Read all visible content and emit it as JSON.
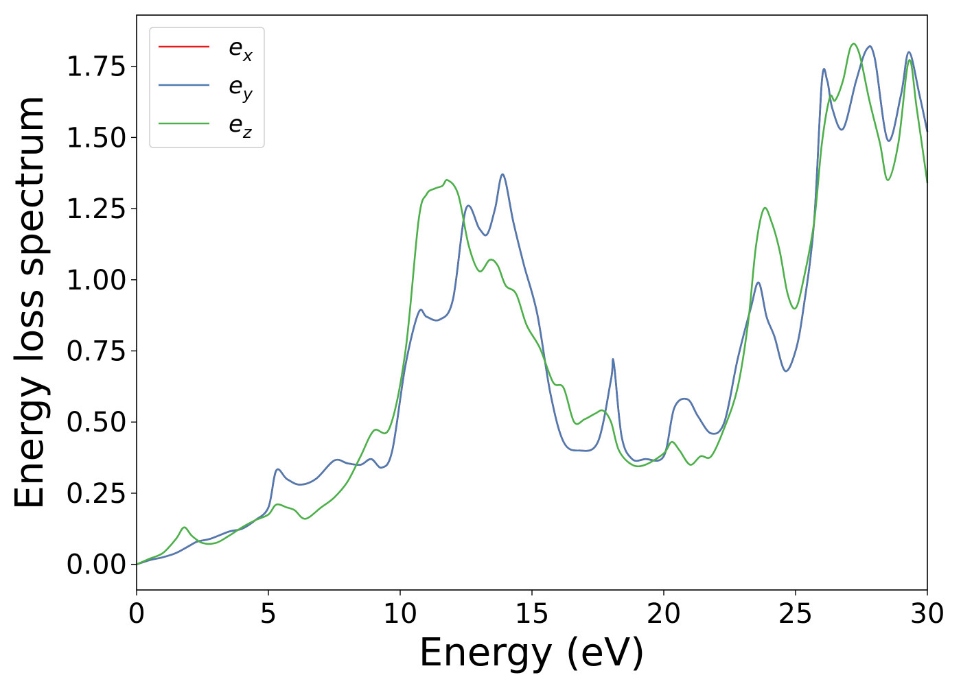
{
  "chart_data": {
    "type": "line",
    "title": "",
    "xlabel": "Energy (eV)",
    "ylabel": "Energy loss spectrum",
    "xlim": [
      0,
      30
    ],
    "ylim": [
      -0.09,
      1.93
    ],
    "xticks": [
      0,
      5,
      10,
      15,
      20,
      25,
      30
    ],
    "xtick_labels": [
      "0",
      "5",
      "10",
      "15",
      "20",
      "25",
      "30"
    ],
    "yticks": [
      0,
      0.25,
      0.5,
      0.75,
      1.0,
      1.25,
      1.5,
      1.75
    ],
    "ytick_labels": [
      "0.00",
      "0.25",
      "0.50",
      "0.75",
      "1.00",
      "1.25",
      "1.50",
      "1.75"
    ],
    "grid": false,
    "legend_position": "top-left",
    "series": [
      {
        "name": "e",
        "subscript": "x",
        "color": "#e41a1c",
        "x": [
          0,
          0.5,
          1,
          1.5,
          2,
          2.3,
          2.8,
          3.5,
          4,
          4.5,
          5,
          5.3,
          5.7,
          6.2,
          6.8,
          7.5,
          8,
          8.5,
          8.9,
          9.3,
          9.7,
          10.2,
          10.7,
          11,
          11.5,
          12,
          12.5,
          13,
          13.3,
          13.6,
          13.9,
          14.3,
          14.7,
          15.2,
          15.7,
          16.2,
          16.8,
          17.5,
          18,
          18.1,
          18.4,
          18.8,
          19.3,
          20,
          20.4,
          20.9,
          21.3,
          21.8,
          22.3,
          22.8,
          23.3,
          23.6,
          23.9,
          24.2,
          24.6,
          25,
          25.3,
          25.7,
          26,
          26.2,
          26.4,
          26.8,
          27.3,
          27.7,
          28,
          28.5,
          29,
          29.3,
          29.7,
          30
        ],
        "y": [
          0,
          0.015,
          0.025,
          0.04,
          0.065,
          0.08,
          0.09,
          0.115,
          0.125,
          0.155,
          0.2,
          0.33,
          0.3,
          0.28,
          0.3,
          0.365,
          0.355,
          0.35,
          0.37,
          0.34,
          0.4,
          0.7,
          0.885,
          0.87,
          0.86,
          0.93,
          1.25,
          1.18,
          1.16,
          1.25,
          1.37,
          1.2,
          1.05,
          0.88,
          0.6,
          0.43,
          0.4,
          0.43,
          0.65,
          0.71,
          0.45,
          0.37,
          0.37,
          0.38,
          0.55,
          0.58,
          0.52,
          0.46,
          0.5,
          0.72,
          0.9,
          0.99,
          0.87,
          0.8,
          0.68,
          0.75,
          0.9,
          1.2,
          1.7,
          1.7,
          1.6,
          1.53,
          1.7,
          1.81,
          1.78,
          1.49,
          1.65,
          1.8,
          1.65,
          1.52
        ]
      },
      {
        "name": "e",
        "subscript": "y",
        "color": "#4e7ab2",
        "x": [
          0,
          0.5,
          1,
          1.5,
          2,
          2.3,
          2.8,
          3.5,
          4,
          4.5,
          5,
          5.3,
          5.7,
          6.2,
          6.8,
          7.5,
          8,
          8.5,
          8.9,
          9.3,
          9.7,
          10.2,
          10.7,
          11,
          11.5,
          12,
          12.5,
          13,
          13.3,
          13.6,
          13.9,
          14.3,
          14.7,
          15.2,
          15.7,
          16.2,
          16.8,
          17.5,
          18,
          18.1,
          18.4,
          18.8,
          19.3,
          20,
          20.4,
          20.9,
          21.3,
          21.8,
          22.3,
          22.8,
          23.3,
          23.6,
          23.9,
          24.2,
          24.6,
          25,
          25.3,
          25.7,
          26,
          26.2,
          26.4,
          26.8,
          27.3,
          27.7,
          28,
          28.5,
          29,
          29.3,
          29.7,
          30
        ],
        "y": [
          0,
          0.015,
          0.025,
          0.04,
          0.065,
          0.08,
          0.09,
          0.115,
          0.125,
          0.155,
          0.2,
          0.33,
          0.3,
          0.28,
          0.3,
          0.365,
          0.355,
          0.35,
          0.37,
          0.34,
          0.4,
          0.7,
          0.885,
          0.87,
          0.86,
          0.93,
          1.25,
          1.18,
          1.16,
          1.25,
          1.37,
          1.2,
          1.05,
          0.88,
          0.6,
          0.43,
          0.4,
          0.43,
          0.65,
          0.71,
          0.45,
          0.37,
          0.37,
          0.38,
          0.55,
          0.58,
          0.52,
          0.46,
          0.5,
          0.72,
          0.9,
          0.99,
          0.87,
          0.8,
          0.68,
          0.75,
          0.9,
          1.2,
          1.7,
          1.7,
          1.6,
          1.53,
          1.7,
          1.81,
          1.78,
          1.49,
          1.65,
          1.8,
          1.65,
          1.52
        ]
      },
      {
        "name": "e",
        "subscript": "z",
        "color": "#4daf4a",
        "x": [
          0,
          0.5,
          1,
          1.5,
          1.8,
          2.1,
          2.5,
          3,
          3.5,
          4,
          4.5,
          5,
          5.3,
          5.7,
          6,
          6.4,
          7,
          7.5,
          8,
          8.5,
          9,
          9.6,
          10.2,
          10.7,
          11,
          11.3,
          11.6,
          11.8,
          12.2,
          12.6,
          13,
          13.4,
          13.7,
          14,
          14.4,
          14.8,
          15.3,
          15.8,
          16.2,
          16.6,
          17,
          17.4,
          17.7,
          18,
          18.3,
          18.8,
          19.3,
          20,
          20.3,
          20.6,
          21,
          21.4,
          21.8,
          22.3,
          22.8,
          23.2,
          23.5,
          23.8,
          24.1,
          24.4,
          24.7,
          25,
          25.3,
          25.7,
          26,
          26.3,
          26.5,
          26.8,
          27.1,
          27.4,
          27.8,
          28.2,
          28.5,
          28.9,
          29.3,
          29.6,
          30
        ],
        "y": [
          0,
          0.02,
          0.04,
          0.09,
          0.13,
          0.1,
          0.075,
          0.075,
          0.1,
          0.13,
          0.155,
          0.175,
          0.21,
          0.2,
          0.19,
          0.16,
          0.2,
          0.235,
          0.29,
          0.38,
          0.47,
          0.48,
          0.75,
          1.21,
          1.3,
          1.32,
          1.33,
          1.35,
          1.3,
          1.12,
          1.03,
          1.07,
          1.05,
          0.98,
          0.95,
          0.84,
          0.76,
          0.64,
          0.62,
          0.5,
          0.51,
          0.53,
          0.54,
          0.5,
          0.4,
          0.35,
          0.35,
          0.39,
          0.43,
          0.4,
          0.35,
          0.38,
          0.38,
          0.48,
          0.62,
          0.85,
          1.12,
          1.25,
          1.2,
          1.1,
          0.95,
          0.9,
          1,
          1.2,
          1.48,
          1.64,
          1.63,
          1.7,
          1.82,
          1.8,
          1.63,
          1.48,
          1.35,
          1.48,
          1.77,
          1.6,
          1.34
        ]
      }
    ]
  }
}
